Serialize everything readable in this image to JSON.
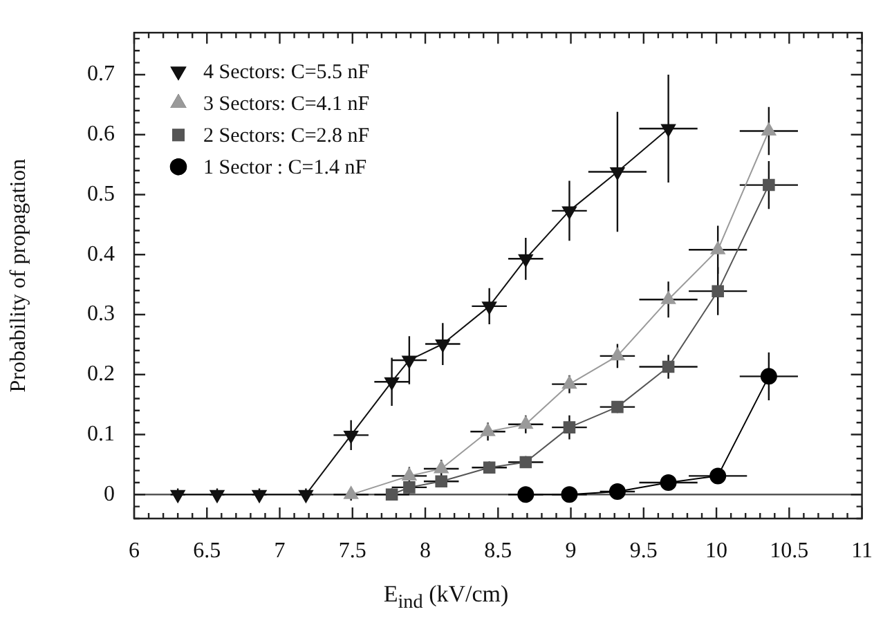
{
  "chart_data": {
    "type": "line",
    "xlabel": "E$_{ind}$ (kV/cm)",
    "ylabel": "Probability of propagation",
    "xlim": [
      6,
      11
    ],
    "xticks": [
      6,
      6.5,
      7,
      7.5,
      8,
      8.5,
      9,
      9.5,
      10,
      10.5,
      11
    ],
    "ylim": [
      -0.04,
      0.77
    ],
    "yticks": [
      0,
      0.1,
      0.2,
      0.3,
      0.4,
      0.5,
      0.6,
      0.7
    ],
    "grid": false,
    "legend": "top left",
    "line_style": "solid",
    "ref_lines": [
      {
        "axis": "y",
        "value": 0,
        "color": "#555555"
      }
    ],
    "series": [
      {
        "name": "4 Sectors: C=5.5 nF",
        "color": "#111111",
        "marker": "triangle-down",
        "x": [
          6.3,
          6.57,
          6.86,
          7.18,
          7.49,
          7.77,
          7.89,
          8.12,
          8.44,
          8.69,
          8.99,
          9.32,
          9.67
        ],
        "values": [
          0,
          0,
          0,
          0,
          0.099,
          0.188,
          0.224,
          0.251,
          0.314,
          0.393,
          0.473,
          0.538,
          0.61
        ],
        "errors": [
          0.01,
          0.01,
          0.01,
          0.01,
          0.025,
          0.04,
          0.04,
          0.035,
          0.03,
          0.035,
          0.05,
          0.1,
          0.09
        ],
        "xerrors": [
          0.05,
          0.05,
          0.05,
          0.05,
          0.12,
          0.12,
          0.12,
          0.12,
          0.12,
          0.12,
          0.12,
          0.2,
          0.2
        ]
      },
      {
        "name": "3 Sectors: C=4.1 nF",
        "color": "#9a9a9a",
        "marker": "triangle",
        "x": [
          7.49,
          7.89,
          8.11,
          8.43,
          8.69,
          8.99,
          9.32,
          9.67,
          10.01,
          10.36
        ],
        "values": [
          0,
          0.031,
          0.043,
          0.105,
          0.117,
          0.184,
          0.231,
          0.325,
          0.408,
          0.606
        ],
        "errors": [
          0.01,
          0.015,
          0.015,
          0.015,
          0.015,
          0.015,
          0.02,
          0.03,
          0.04,
          0.04
        ],
        "xerrors": [
          0.12,
          0.12,
          0.12,
          0.12,
          0.12,
          0.12,
          0.12,
          0.2,
          0.2,
          0.2
        ]
      },
      {
        "name": "2 Sectors: C=2.8 nF",
        "color": "#555555",
        "marker": "square",
        "x": [
          7.77,
          7.89,
          8.11,
          8.44,
          8.69,
          8.99,
          9.32,
          9.67,
          10.01,
          10.36
        ],
        "values": [
          0,
          0.012,
          0.022,
          0.045,
          0.054,
          0.112,
          0.146,
          0.213,
          0.339,
          0.516
        ],
        "errors": [
          0.01,
          0.01,
          0.01,
          0.01,
          0.01,
          0.02,
          0.01,
          0.02,
          0.04,
          0.04
        ],
        "xerrors": [
          0.12,
          0.12,
          0.12,
          0.12,
          0.12,
          0.12,
          0.12,
          0.2,
          0.2,
          0.2
        ]
      },
      {
        "name": "1 Sector : C=1.4 nF",
        "color": "#000000",
        "marker": "circle",
        "x": [
          8.69,
          8.99,
          9.32,
          9.67,
          10.01,
          10.36
        ],
        "values": [
          0,
          0,
          0.005,
          0.02,
          0.031,
          0.197
        ],
        "errors": [
          0.005,
          0.005,
          0.005,
          0.005,
          0.005,
          0.04
        ],
        "xerrors": [
          0.12,
          0.12,
          0.12,
          0.2,
          0.2,
          0.2
        ]
      }
    ]
  }
}
